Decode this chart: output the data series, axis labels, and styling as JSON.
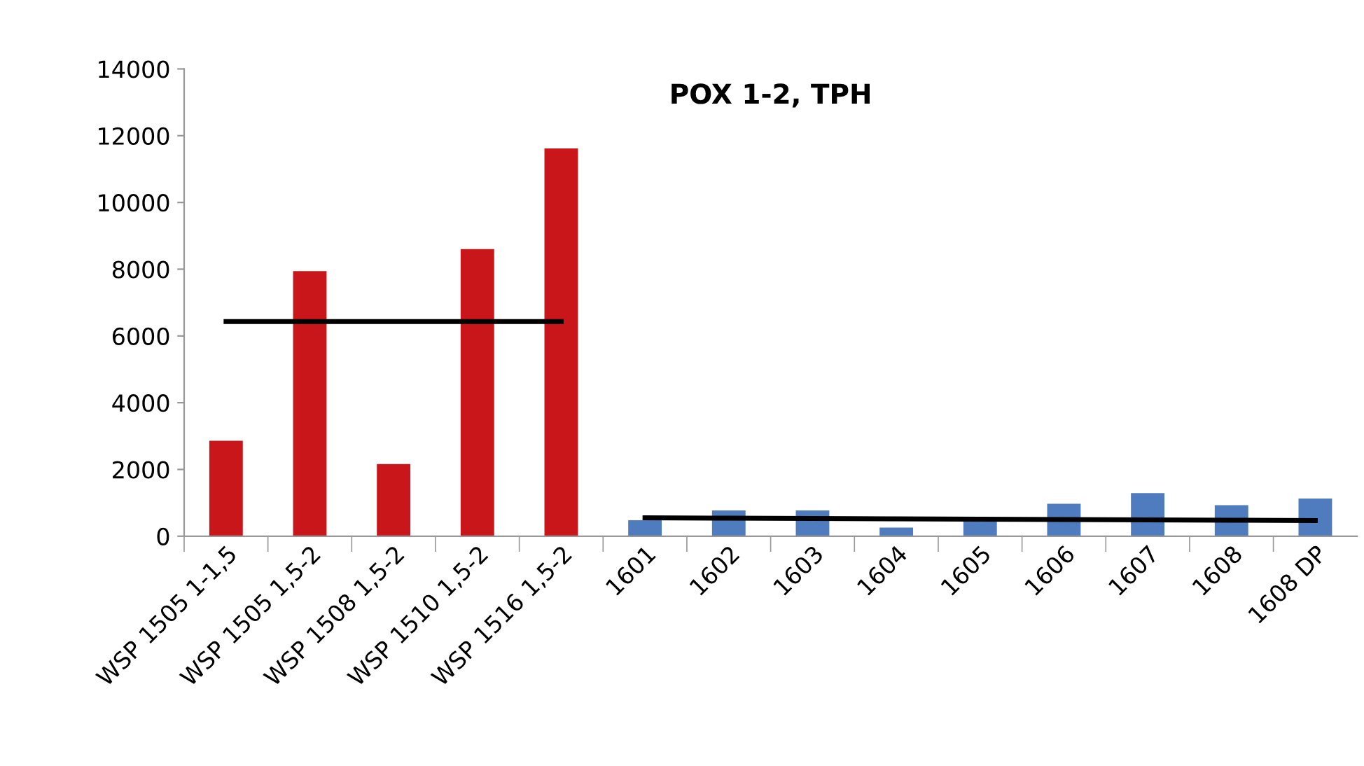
{
  "chart_data": {
    "type": "bar",
    "title": "POX 1-2, TPH",
    "categories": [
      "WSP 1505 1-1,5",
      "WSP 1505 1,5-2",
      "WSP 1508 1,5-2",
      "WSP 1510 1,5-2",
      "WSP 1516 1,5-2",
      "1601",
      "1602",
      "1603",
      "1604",
      "1605",
      "1606",
      "1607",
      "1608",
      "1608 DP"
    ],
    "series": [
      {
        "color": "#c8161b",
        "values": [
          2860,
          7940,
          2160,
          8600,
          11620,
          null,
          null,
          null,
          null,
          null,
          null,
          null,
          null,
          null
        ]
      },
      {
        "color": "#4f7bbf",
        "values": [
          null,
          null,
          null,
          null,
          null,
          480,
          770,
          770,
          260,
          480,
          970,
          1290,
          930,
          1130
        ]
      },
      {
        "type": "line",
        "color": "#000000",
        "values": [
          6430,
          6430,
          6430,
          6430,
          6430,
          null,
          null,
          null,
          null,
          null,
          null,
          null,
          null,
          null
        ]
      },
      {
        "type": "line",
        "color": "#000000",
        "values": [
          null,
          null,
          null,
          null,
          null,
          550,
          540,
          530,
          520,
          510,
          500,
          490,
          480,
          470
        ]
      }
    ],
    "ylim": [
      0,
      14000
    ],
    "yticks": [
      0,
      2000,
      4000,
      6000,
      8000,
      10000,
      12000,
      14000
    ],
    "grid": false,
    "legend": false
  }
}
